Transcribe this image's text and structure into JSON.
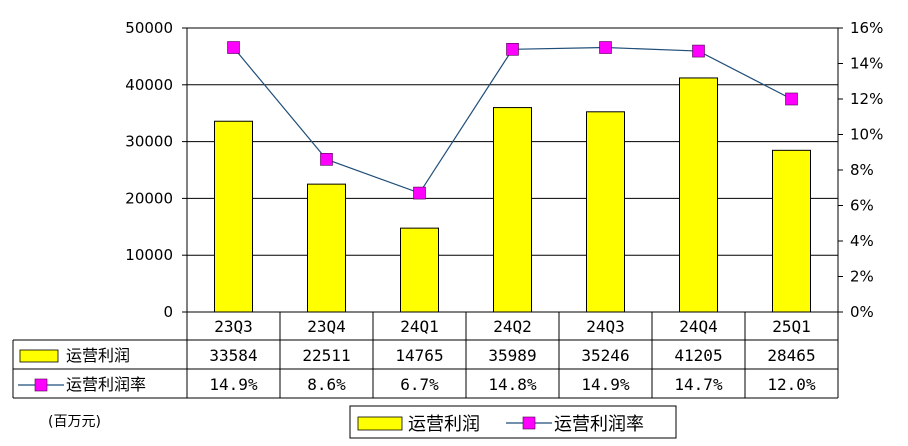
{
  "chart_data": {
    "type": "bar",
    "categories": [
      "23Q3",
      "23Q4",
      "24Q1",
      "24Q2",
      "24Q3",
      "24Q4",
      "25Q1"
    ],
    "series": [
      {
        "name": "运营利润",
        "type": "bar",
        "axis": "left",
        "color": "#FFFF00",
        "values": [
          33584,
          22511,
          14765,
          35989,
          35246,
          41205,
          28465
        ],
        "labels": [
          "33584",
          "22511",
          "14765",
          "35989",
          "35246",
          "41205",
          "28465"
        ]
      },
      {
        "name": "运营利润率",
        "type": "line",
        "axis": "right",
        "color": "#FF00FF",
        "line_color": "#1F4E79",
        "values": [
          14.9,
          8.6,
          6.7,
          14.8,
          14.9,
          14.7,
          12.0
        ],
        "labels": [
          "14.9%",
          "8.6%",
          "6.7%",
          "14.8%",
          "14.9%",
          "14.7%",
          "12.0%"
        ]
      }
    ],
    "ylim_left": [
      0,
      50000
    ],
    "yticks_left": [
      "0",
      "10000",
      "20000",
      "30000",
      "40000",
      "50000"
    ],
    "ylim_right": [
      0,
      16
    ],
    "yticks_right": [
      "0%",
      "2%",
      "4%",
      "6%",
      "8%",
      "10%",
      "12%",
      "14%",
      "16%"
    ],
    "unit_label": "(百万元)",
    "grid": true,
    "legend": "bottom",
    "data_table": true
  }
}
